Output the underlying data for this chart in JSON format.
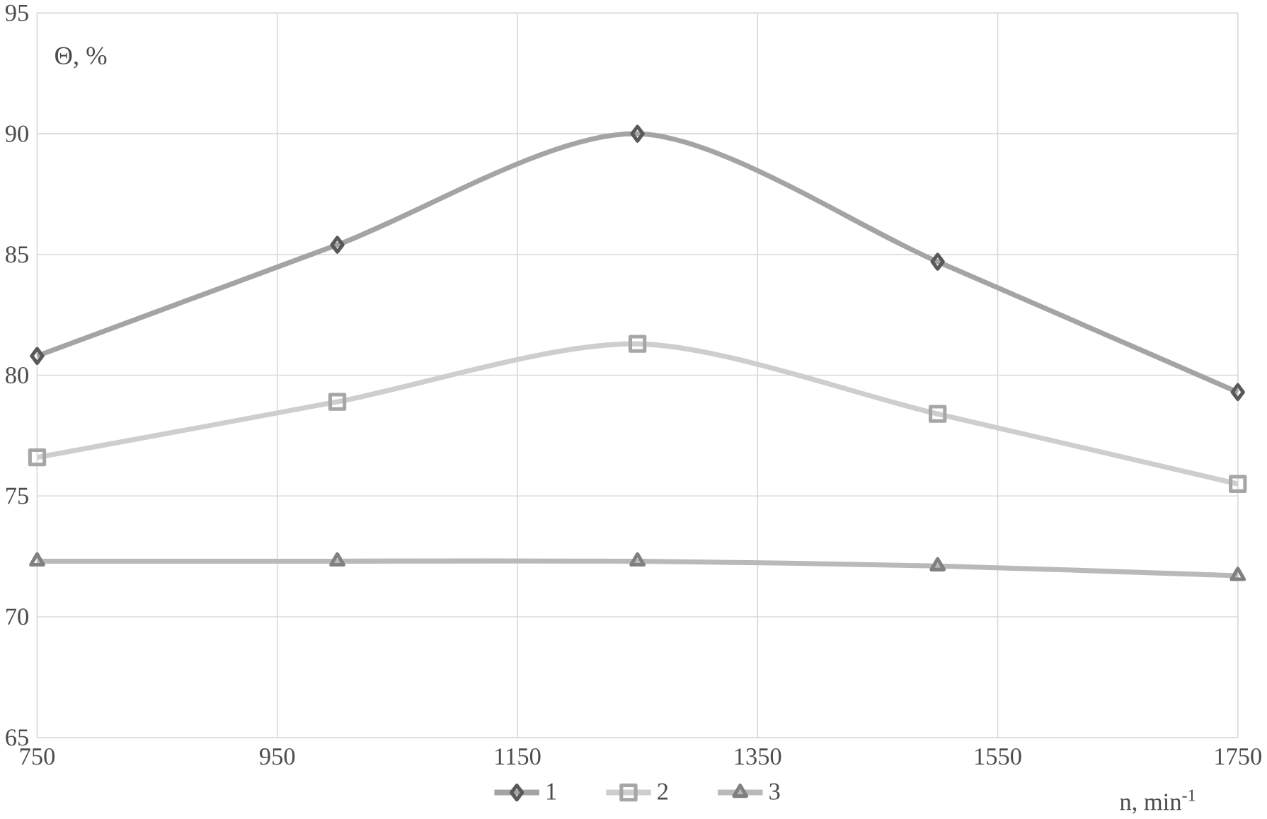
{
  "chart_data": {
    "type": "line",
    "xlabel": "n, min$^{-1}$",
    "ylabel": "Θ, %",
    "x": [
      750,
      1000,
      1250,
      1500,
      1750
    ],
    "series": [
      {
        "name": "1",
        "color": "#595959",
        "marker": "diamond",
        "values": [
          80.8,
          85.4,
          90.0,
          84.7,
          79.3
        ]
      },
      {
        "name": "2",
        "color": "#a6a6a6",
        "marker": "square",
        "values": [
          76.6,
          78.9,
          81.3,
          78.4,
          75.5
        ]
      },
      {
        "name": "3",
        "color": "#808080",
        "marker": "triangle",
        "values": [
          72.3,
          72.3,
          72.3,
          72.1,
          71.7
        ]
      }
    ],
    "xlim": [
      750,
      1750
    ],
    "ylim": [
      65,
      95
    ],
    "xticks": [
      750,
      950,
      1150,
      1350,
      1550,
      1750
    ],
    "yticks": [
      65,
      70,
      75,
      80,
      85,
      90,
      95
    ],
    "grid": true,
    "legend": "bottom",
    "line_style": "solid"
  }
}
